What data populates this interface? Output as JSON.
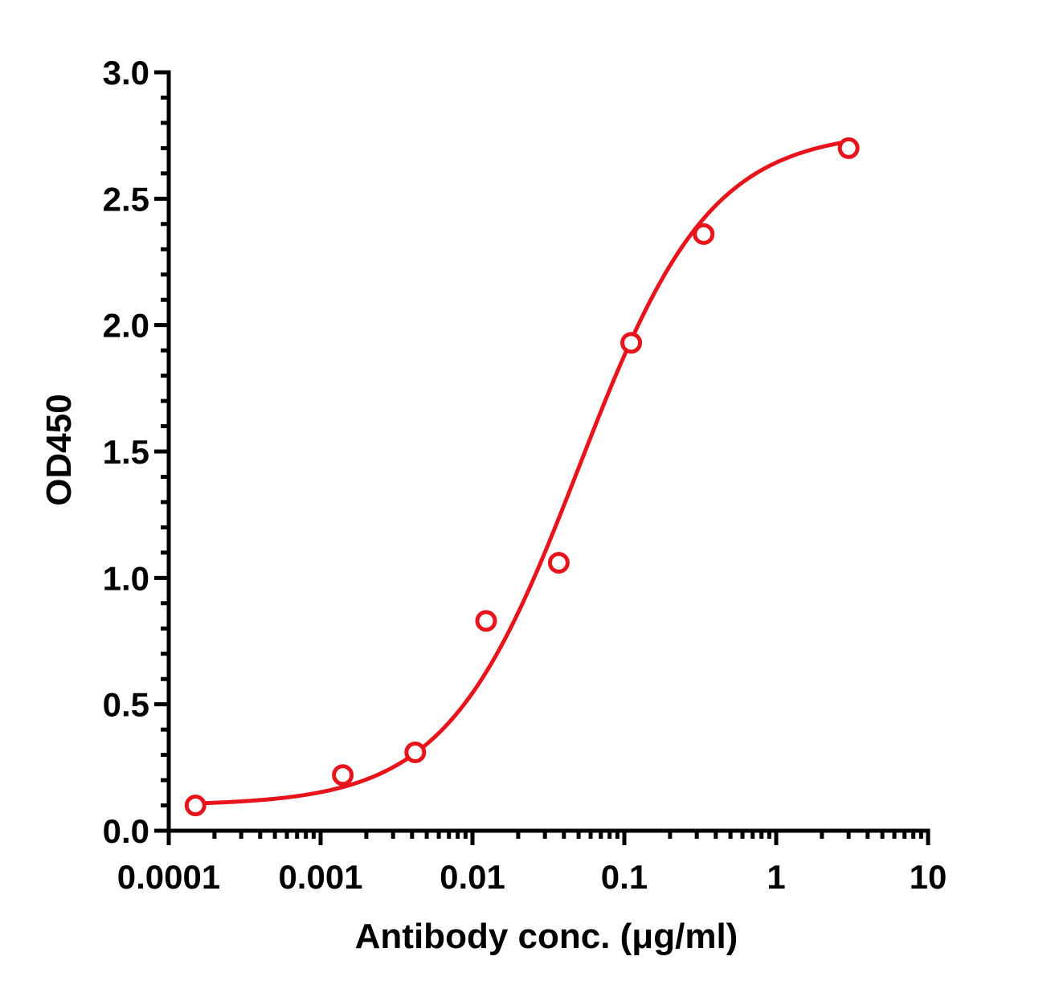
{
  "chart_data": {
    "type": "scatter",
    "title": "",
    "xlabel": "Antibody conc. (μg/ml)",
    "ylabel": "OD450",
    "xscale": "log",
    "xlim": [
      0.0001,
      10
    ],
    "ylim": [
      0.0,
      3.0
    ],
    "x_ticks": [
      "0.0001",
      "0.001",
      "0.01",
      "0.1",
      "1",
      "10"
    ],
    "y_ticks": [
      "0.0",
      "0.5",
      "1.0",
      "1.5",
      "2.0",
      "2.5",
      "3.0"
    ],
    "grid": false,
    "legend": "none",
    "color": "#e8141c",
    "series": [
      {
        "marker": "open-circle",
        "x": [
          0.00015,
          0.0014,
          0.0042,
          0.0123,
          0.037,
          0.111,
          0.333,
          3.0
        ],
        "y": [
          0.1,
          0.22,
          0.31,
          0.83,
          1.06,
          1.93,
          2.36,
          2.7
        ]
      }
    ],
    "fit": {
      "type": "4PL",
      "bottom": 0.1,
      "top": 2.77,
      "ec50": 0.05,
      "hill": 1.0
    }
  }
}
